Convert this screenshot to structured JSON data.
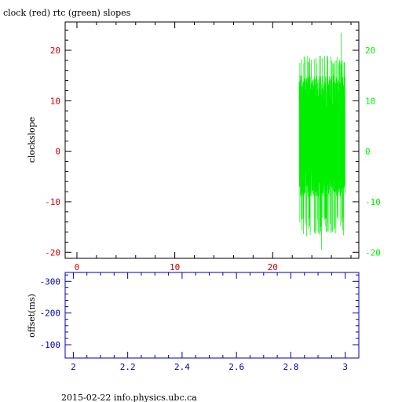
{
  "header": {
    "title": "clock (red) rtc (green) slopes"
  },
  "footer": {
    "text": "2015-02-22 info.physics.ubc.ca"
  },
  "colors": {
    "clock": "#cc0000",
    "rtc": "#00ee00",
    "offset": "#0000aa",
    "frame": "#000000"
  },
  "chart_data": [
    {
      "type": "line",
      "title": "clock (red) rtc (green) slopes",
      "xlabel": "",
      "ylabel": "clockslope",
      "xlim": [
        -1.2,
        28.8
      ],
      "ylim": [
        -21.2,
        25.6
      ],
      "x_ticks": [
        0,
        10,
        20
      ],
      "y_ticks_left": [
        -20,
        -10,
        0,
        10,
        20
      ],
      "y_ticks_right": [
        -20,
        -10,
        0,
        10,
        20
      ],
      "grid": false,
      "series": [
        {
          "color": "#00ee00",
          "x_range": [
            22.7,
            27.4
          ],
          "y_range_typical": [
            -13,
            17
          ],
          "y_peaks": [
            {
              "x": 27.0,
              "y": 23.5
            },
            {
              "x": 25.0,
              "y": -19.5
            }
          ],
          "mean": 0
        }
      ]
    },
    {
      "type": "line",
      "title": "",
      "xlabel": "",
      "ylabel": "offset(ms)",
      "xlim": [
        1.97,
        3.05
      ],
      "ylim": [
        -58,
        -328
      ],
      "x_ticks": [
        2,
        2.2,
        2.4,
        2.6,
        2.8,
        3
      ],
      "y_ticks": [
        -300,
        -200,
        -100
      ],
      "grid": false,
      "series": []
    }
  ]
}
